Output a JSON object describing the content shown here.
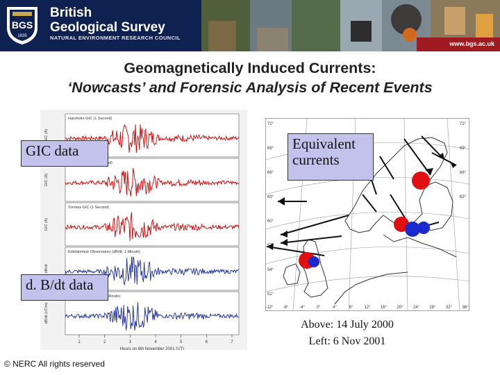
{
  "header": {
    "org_name_line1": "British",
    "org_name_line2": "Geological Survey",
    "org_subtitle": "NATURAL ENVIRONMENT RESEARCH COUNCIL",
    "seal_text": "BGS",
    "seal_year": "1835",
    "url": "www.bgs.ac.uk"
  },
  "slide": {
    "title_line1": "Geomagnetically Induced Currents:",
    "title_line2": "‘Nowcasts’ and Forensic Analysis of Recent Events"
  },
  "labels": {
    "gic": "GIC data",
    "equivalent_line1": "Equivalent",
    "equivalent_line2": "currents",
    "dbdt": "d. B/dt data"
  },
  "graph": {
    "panels": [
      {
        "title": "Harsholm GIC (1 Second)",
        "axis_label": "GIC (A)",
        "color": "#cc0000"
      },
      {
        "title": "Stalkaven GIC (1 Second)",
        "axis_label": "GIC (A)",
        "color": "#cc0000"
      },
      {
        "title": "Torness GIC (1 Second)",
        "axis_label": "GIC (A)",
        "color": "#cc0000"
      },
      {
        "title": "Eskdalemuir Observatory (dB/dt, 1 Minute)",
        "axis_label": "dB/dt",
        "color": "#1a2a9a"
      },
      {
        "title": "Eskdalemuir (dBy/dt, 1 Minute)",
        "axis_label": "dB/dt (nT/m)",
        "color": "#1a2a9a"
      }
    ],
    "x_ticks": [
      "1",
      "2",
      "3",
      "4",
      "5",
      "6",
      "7"
    ],
    "x_label": "Hours on 6th November 2001 (UT)"
  },
  "map": {
    "lat_labels": [
      "72°",
      "69°",
      "66°",
      "63°",
      "60°",
      "57°",
      "54°",
      "51°"
    ],
    "lon_labels": [
      "-12°",
      "-8°",
      "-4°",
      "0°",
      "4°",
      "8°",
      "12°",
      "16°",
      "20°",
      "24°",
      "28°",
      "32°",
      "36°"
    ]
  },
  "caption": {
    "line1": "Above: 14 July 2000",
    "line2": "Left: 6 Nov 2001"
  },
  "footer": {
    "copyright": "© NERC All rights reserved"
  }
}
